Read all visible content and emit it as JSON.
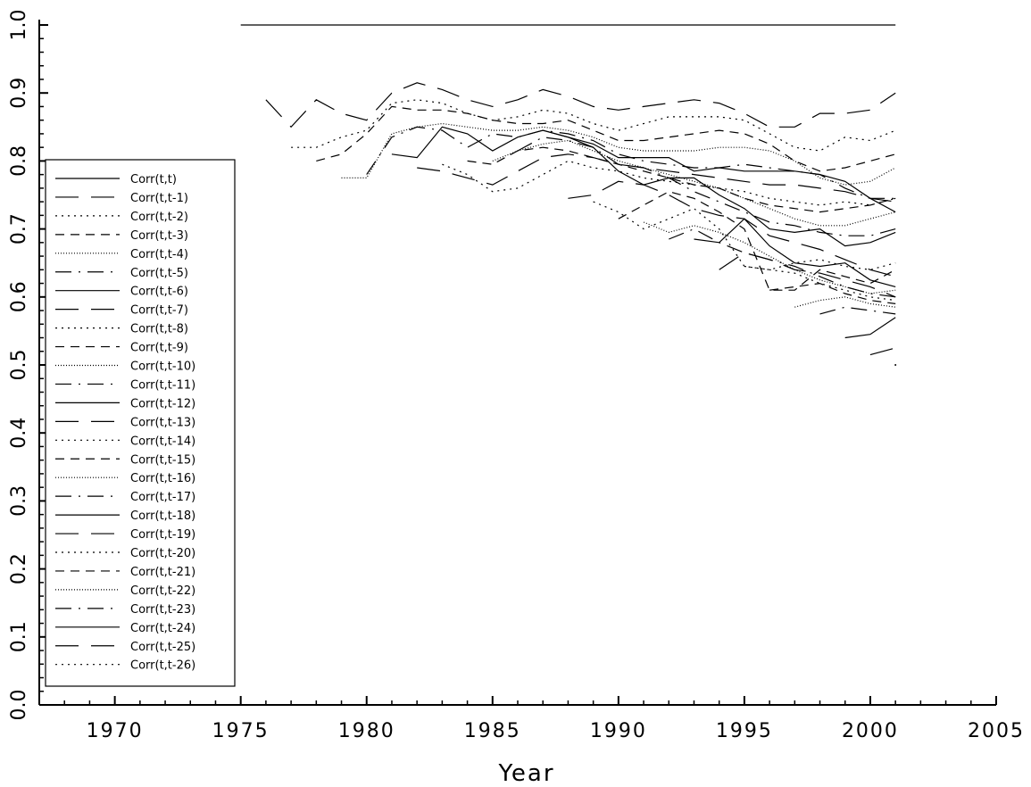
{
  "chart_data": {
    "type": "line",
    "title": "",
    "xlabel": "Year",
    "ylabel": "",
    "xlim": [
      1967,
      2005
    ],
    "ylim": [
      0.0,
      1.0
    ],
    "x_ticks": [
      "1970",
      "1975",
      "1980",
      "1985",
      "1990",
      "1995",
      "2000",
      "2005"
    ],
    "y_ticks": [
      "0.0",
      "0.1",
      "0.2",
      "0.3",
      "0.4",
      "0.5",
      "0.6",
      "0.7",
      "0.8",
      "0.9",
      "1.0"
    ],
    "grid": false,
    "legend_position": "left",
    "series": [
      {
        "name": "Corr(t,t)",
        "style": "solid",
        "x": [
          1975,
          2001
        ],
        "y": [
          1.0,
          1.0
        ]
      },
      {
        "name": "Corr(t,t-1)",
        "style": "longdash",
        "x": [
          1976,
          1977,
          1978,
          1979,
          1980,
          1981,
          1982,
          1983,
          1984,
          1985,
          1986,
          1987,
          1988,
          1989,
          1990,
          1991,
          1992,
          1993,
          1994,
          1995,
          1996,
          1997,
          1998,
          1999,
          2000,
          2001
        ],
        "y": [
          0.89,
          0.85,
          0.89,
          0.87,
          0.86,
          0.9,
          0.915,
          0.905,
          0.89,
          0.88,
          0.89,
          0.905,
          0.895,
          0.88,
          0.875,
          0.88,
          0.885,
          0.89,
          0.885,
          0.87,
          0.85,
          0.85,
          0.87,
          0.87,
          0.875,
          0.9
        ]
      },
      {
        "name": "Corr(t,t-2)",
        "style": "dotted",
        "x": [
          1977,
          1978,
          1979,
          1980,
          1981,
          1982,
          1983,
          1984,
          1985,
          1986,
          1987,
          1988,
          1989,
          1990,
          1991,
          1992,
          1993,
          1994,
          1995,
          1996,
          1997,
          1998,
          1999,
          2000,
          2001
        ],
        "y": [
          0.82,
          0.82,
          0.835,
          0.845,
          0.885,
          0.89,
          0.885,
          0.87,
          0.86,
          0.865,
          0.875,
          0.87,
          0.855,
          0.845,
          0.855,
          0.865,
          0.865,
          0.865,
          0.86,
          0.84,
          0.82,
          0.815,
          0.835,
          0.83,
          0.845
        ]
      },
      {
        "name": "Corr(t,t-3)",
        "style": "dashed",
        "x": [
          1978,
          1979,
          1980,
          1981,
          1982,
          1983,
          1984,
          1985,
          1986,
          1987,
          1988,
          1989,
          1990,
          1991,
          1992,
          1993,
          1994,
          1995,
          1996,
          1997,
          1998,
          1999,
          2000,
          2001
        ],
        "y": [
          0.8,
          0.81,
          0.84,
          0.88,
          0.875,
          0.875,
          0.87,
          0.86,
          0.855,
          0.855,
          0.86,
          0.845,
          0.83,
          0.83,
          0.835,
          0.84,
          0.845,
          0.84,
          0.825,
          0.8,
          0.785,
          0.79,
          0.8,
          0.81
        ]
      },
      {
        "name": "Corr(t,t-4)",
        "style": "fine-dotted",
        "x": [
          1979,
          1980,
          1981,
          1982,
          1983,
          1984,
          1985,
          1986,
          1987,
          1988,
          1989,
          1990,
          1991,
          1992,
          1993,
          1994,
          1995,
          1996,
          1997,
          1998,
          1999,
          2000,
          2001
        ],
        "y": [
          0.775,
          0.775,
          0.84,
          0.85,
          0.855,
          0.85,
          0.845,
          0.845,
          0.85,
          0.845,
          0.835,
          0.82,
          0.815,
          0.815,
          0.815,
          0.82,
          0.82,
          0.815,
          0.8,
          0.775,
          0.765,
          0.77,
          0.79
        ]
      },
      {
        "name": "Corr(t,t-5)",
        "style": "dashdot",
        "x": [
          1980,
          1981,
          1982,
          1983,
          1984,
          1985,
          1986,
          1987,
          1988,
          1989,
          1990,
          1991,
          1992,
          1993,
          1994,
          1995,
          1996,
          1997,
          1998,
          1999,
          2000,
          2001
        ],
        "y": [
          0.78,
          0.835,
          0.85,
          0.845,
          0.82,
          0.84,
          0.835,
          0.845,
          0.84,
          0.83,
          0.81,
          0.8,
          0.795,
          0.79,
          0.79,
          0.795,
          0.79,
          0.785,
          0.78,
          0.76,
          0.745,
          0.745
        ]
      },
      {
        "name": "Corr(t,t-6)",
        "style": "solid",
        "x": [
          1981,
          1982,
          1983,
          1984,
          1985,
          1986,
          1987,
          1988,
          1989,
          1990,
          1991,
          1992,
          1993,
          1994,
          1995,
          1996,
          1997,
          1998,
          1999,
          2000,
          2001
        ],
        "y": [
          0.81,
          0.805,
          0.85,
          0.84,
          0.815,
          0.835,
          0.845,
          0.835,
          0.825,
          0.805,
          0.805,
          0.805,
          0.785,
          0.79,
          0.785,
          0.785,
          0.785,
          0.78,
          0.77,
          0.745,
          0.725
        ]
      },
      {
        "name": "Corr(t,t-7)",
        "style": "longdash",
        "x": [
          1982,
          1983,
          1984,
          1985,
          1986,
          1987,
          1988,
          1989,
          1990,
          1991,
          1992,
          1993,
          1994,
          1995,
          1996,
          1997,
          1998,
          1999,
          2000,
          2001
        ],
        "y": [
          0.79,
          0.785,
          0.775,
          0.765,
          0.785,
          0.805,
          0.81,
          0.805,
          0.795,
          0.79,
          0.785,
          0.78,
          0.775,
          0.77,
          0.765,
          0.765,
          0.76,
          0.755,
          0.745,
          0.74
        ]
      },
      {
        "name": "Corr(t,t-8)",
        "style": "dotted",
        "x": [
          1983,
          1984,
          1985,
          1986,
          1987,
          1988,
          1989,
          1990,
          1991,
          1992,
          1993,
          1994,
          1995,
          1996,
          1997,
          1998,
          1999,
          2000,
          2001
        ],
        "y": [
          0.795,
          0.78,
          0.755,
          0.76,
          0.78,
          0.8,
          0.79,
          0.785,
          0.775,
          0.77,
          0.765,
          0.76,
          0.755,
          0.745,
          0.74,
          0.735,
          0.74,
          0.735,
          0.745
        ]
      },
      {
        "name": "Corr(t,t-9)",
        "style": "dashed",
        "x": [
          1984,
          1985,
          1986,
          1987,
          1988,
          1989,
          1990,
          1991,
          1992,
          1993,
          1994,
          1995,
          1996,
          1997,
          1998,
          1999,
          2000,
          2001
        ],
        "y": [
          0.8,
          0.795,
          0.815,
          0.82,
          0.815,
          0.805,
          0.795,
          0.785,
          0.775,
          0.765,
          0.76,
          0.745,
          0.735,
          0.73,
          0.725,
          0.73,
          0.735,
          0.745
        ]
      },
      {
        "name": "Corr(t,t-10)",
        "style": "fine-dotted",
        "x": [
          1985,
          1986,
          1987,
          1988,
          1989,
          1990,
          1991,
          1992,
          1993,
          1994,
          1995,
          1996,
          1997,
          1998,
          1999,
          2000,
          2001
        ],
        "y": [
          0.8,
          0.815,
          0.825,
          0.83,
          0.815,
          0.8,
          0.79,
          0.78,
          0.77,
          0.76,
          0.745,
          0.73,
          0.715,
          0.705,
          0.705,
          0.715,
          0.725
        ]
      },
      {
        "name": "Corr(t,t-11)",
        "style": "dashdot",
        "x": [
          1986,
          1987,
          1988,
          1989,
          1990,
          1991,
          1992,
          1993,
          1994,
          1995,
          1996,
          1997,
          1998,
          1999,
          2000,
          2001
        ],
        "y": [
          0.815,
          0.835,
          0.83,
          0.82,
          0.795,
          0.79,
          0.775,
          0.755,
          0.74,
          0.725,
          0.71,
          0.705,
          0.695,
          0.69,
          0.69,
          0.7
        ]
      },
      {
        "name": "Corr(t,t-12)",
        "style": "solid",
        "x": [
          1987,
          1988,
          1989,
          1990,
          1991,
          1992,
          1993,
          1994,
          1995,
          1996,
          1997,
          1998,
          1999,
          2000,
          2001
        ],
        "y": [
          0.845,
          0.835,
          0.82,
          0.785,
          0.765,
          0.775,
          0.775,
          0.75,
          0.73,
          0.7,
          0.695,
          0.7,
          0.675,
          0.68,
          0.695
        ]
      },
      {
        "name": "Corr(t,t-13)",
        "style": "longdash",
        "x": [
          1988,
          1989,
          1990,
          1991,
          1992,
          1993,
          1994,
          1995,
          1996,
          1997,
          1998,
          1999,
          2000,
          2001
        ],
        "y": [
          0.745,
          0.75,
          0.77,
          0.765,
          0.75,
          0.73,
          0.72,
          0.715,
          0.69,
          0.68,
          0.67,
          0.655,
          0.64,
          0.63
        ]
      },
      {
        "name": "Corr(t,t-14)",
        "style": "dotted",
        "x": [
          1989,
          1990,
          1991,
          1992,
          1993,
          1994,
          1995,
          1996,
          1997,
          1998,
          1999,
          2000,
          2001
        ],
        "y": [
          0.74,
          0.725,
          0.7,
          0.715,
          0.73,
          0.7,
          0.645,
          0.64,
          0.65,
          0.655,
          0.645,
          0.64,
          0.65
        ]
      },
      {
        "name": "Corr(t,t-15)",
        "style": "dashed",
        "x": [
          1990,
          1991,
          1992,
          1993,
          1994,
          1995,
          1996,
          1997,
          1998,
          1999,
          2000,
          2001
        ],
        "y": [
          0.715,
          0.735,
          0.755,
          0.745,
          0.725,
          0.7,
          0.61,
          0.61,
          0.64,
          0.63,
          0.62,
          0.64
        ]
      },
      {
        "name": "Corr(t,t-16)",
        "style": "fine-dotted",
        "x": [
          1991,
          1992,
          1993,
          1994,
          1995,
          1996,
          1997,
          1998,
          1999,
          2000,
          2001
        ],
        "y": [
          0.71,
          0.695,
          0.705,
          0.695,
          0.68,
          0.66,
          0.64,
          0.625,
          0.615,
          0.605,
          0.61
        ]
      },
      {
        "name": "Corr(t,t-17)",
        "style": "dashdot",
        "x": [
          1992,
          1993,
          1994,
          1995,
          1996,
          1997,
          1998,
          1999,
          2000,
          2001
        ],
        "y": [
          0.685,
          0.7,
          0.68,
          0.665,
          0.655,
          0.645,
          0.63,
          0.615,
          0.605,
          0.6
        ]
      },
      {
        "name": "Corr(t,t-18)",
        "style": "solid",
        "x": [
          1993,
          1994,
          1995,
          1996,
          1997,
          1998,
          1999,
          2000,
          2001
        ],
        "y": [
          0.685,
          0.68,
          0.715,
          0.675,
          0.65,
          0.645,
          0.65,
          0.625,
          0.615
        ]
      },
      {
        "name": "Corr(t,t-19)",
        "style": "longdash",
        "x": [
          1994,
          1995,
          1996,
          1997,
          1998,
          1999,
          2000,
          2001
        ],
        "y": [
          0.64,
          0.665,
          0.655,
          0.64,
          0.635,
          0.625,
          0.615,
          0.6
        ]
      },
      {
        "name": "Corr(t,t-20)",
        "style": "dotted",
        "x": [
          1995,
          1996,
          1997,
          1998,
          1999,
          2000,
          2001
        ],
        "y": [
          0.645,
          0.64,
          0.635,
          0.62,
          0.61,
          0.6,
          0.595
        ]
      },
      {
        "name": "Corr(t,t-21)",
        "style": "dashed",
        "x": [
          1996,
          1997,
          1998,
          1999,
          2000,
          2001
        ],
        "y": [
          0.61,
          0.615,
          0.62,
          0.605,
          0.595,
          0.59
        ]
      },
      {
        "name": "Corr(t,t-22)",
        "style": "fine-dotted",
        "x": [
          1997,
          1998,
          1999,
          2000,
          2001
        ],
        "y": [
          0.585,
          0.595,
          0.6,
          0.59,
          0.585
        ]
      },
      {
        "name": "Corr(t,t-23)",
        "style": "dashdot",
        "x": [
          1998,
          1999,
          2000,
          2001
        ],
        "y": [
          0.575,
          0.585,
          0.58,
          0.575
        ]
      },
      {
        "name": "Corr(t,t-24)",
        "style": "solid",
        "x": [
          1999,
          2000,
          2001
        ],
        "y": [
          0.54,
          0.545,
          0.57
        ]
      },
      {
        "name": "Corr(t,t-25)",
        "style": "longdash",
        "x": [
          2000,
          2001
        ],
        "y": [
          0.515,
          0.525
        ]
      },
      {
        "name": "Corr(t,t-26)",
        "style": "dotted",
        "x": [
          2001
        ],
        "y": [
          0.5
        ]
      }
    ]
  }
}
